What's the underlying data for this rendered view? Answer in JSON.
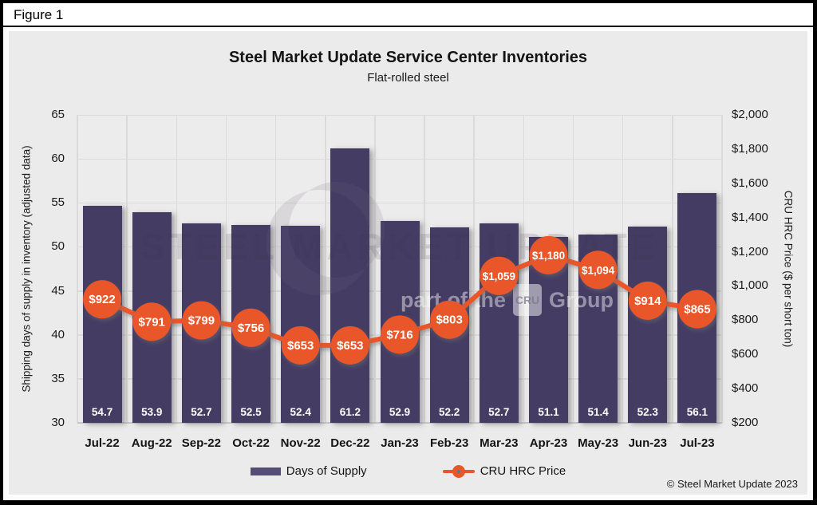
{
  "figure_label": "Figure 1",
  "chart_data": {
    "type": "combo-bar-line",
    "title": "Steel Market Update Service Center Inventories",
    "subtitle": "Flat-rolled steel",
    "categories": [
      "Jul-22",
      "Aug-22",
      "Sep-22",
      "Oct-22",
      "Nov-22",
      "Dec-22",
      "Jan-23",
      "Feb-23",
      "Mar-23",
      "Apr-23",
      "May-23",
      "Jun-23",
      "Jul-23"
    ],
    "series": [
      {
        "name": "Days of Supply",
        "type": "bar",
        "axis": "left",
        "values": [
          54.7,
          53.9,
          52.7,
          52.5,
          52.4,
          61.2,
          52.9,
          52.2,
          52.7,
          51.1,
          51.4,
          52.3,
          56.1
        ],
        "value_labels": [
          "54.7",
          "53.9",
          "52.7",
          "52.5",
          "52.4",
          "61.2",
          "52.9",
          "52.2",
          "52.7",
          "51.1",
          "51.4",
          "52.3",
          "56.1"
        ]
      },
      {
        "name": "CRU HRC Price",
        "type": "line",
        "axis": "right",
        "values": [
          922,
          791,
          799,
          756,
          653,
          653,
          716,
          803,
          1059,
          1180,
          1094,
          914,
          865
        ],
        "value_labels": [
          "$922",
          "$791",
          "$799",
          "$756",
          "$653",
          "$653",
          "$716",
          "$803",
          "$1,059",
          "$1,180",
          "$1,094",
          "$914",
          "$865"
        ]
      }
    ],
    "left_axis": {
      "label": "Shipping days of supply in inventory (adjusted data)",
      "min": 30,
      "max": 65,
      "step": 5,
      "ticks": [
        "65",
        "60",
        "55",
        "50",
        "45",
        "40",
        "35",
        "30"
      ]
    },
    "right_axis": {
      "label": "CRU HRC Price ($ per short ton)",
      "min": 200,
      "max": 2000,
      "step": 200,
      "ticks": [
        "$2,000",
        "$1,800",
        "$1,600",
        "$1,400",
        "$1,200",
        "$1,000",
        "$800",
        "$600",
        "$400",
        "$200"
      ]
    },
    "legend": [
      "Days of Supply",
      "CRU HRC Price"
    ],
    "grid": true,
    "legend_position": "bottom"
  },
  "watermark": {
    "line1": "STEEL MARKET UPDATE",
    "line2_prefix": "part of the",
    "line2_logo": "CRU",
    "line2_suffix": "Group"
  },
  "footer": {
    "copyright": "© Steel Market Update 2023"
  },
  "colors": {
    "bar": "#453C63",
    "line": "#E8572B",
    "marker_text": "#FFFFFF",
    "panel_bg": "#EBEBEB",
    "plot_bg": "#EDECEC",
    "grid": "#DBDBDB"
  }
}
